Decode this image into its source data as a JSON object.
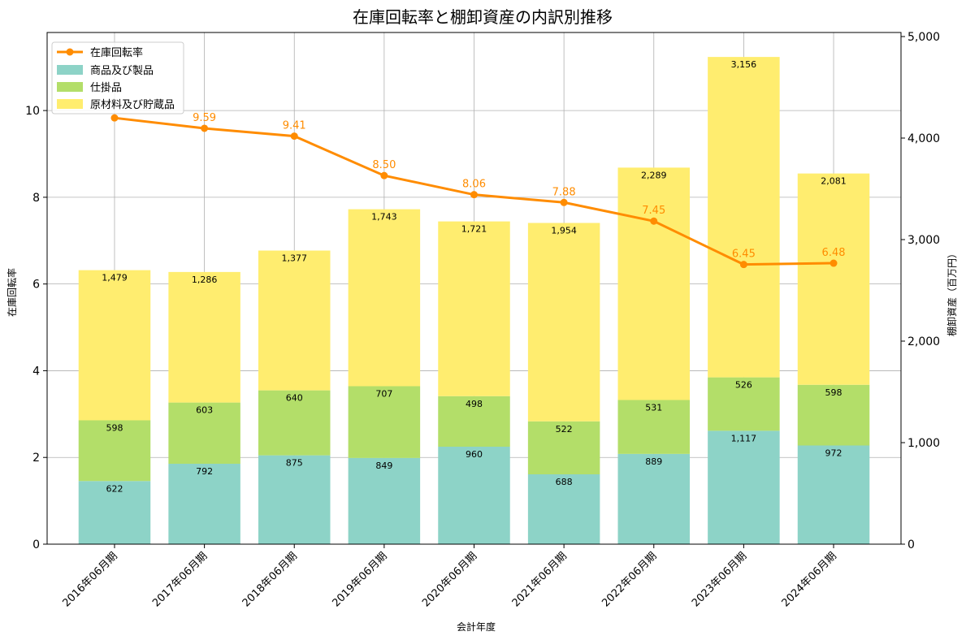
{
  "chart_data": {
    "type": "bar",
    "title": "在庫回転率と棚卸資産の内訳別推移",
    "xlabel": "会計年度",
    "ylabel_left": "在庫回転率",
    "ylabel_right": "棚卸資産（百万円）",
    "categories": [
      "2016年06月期",
      "2017年06月期",
      "2018年06月期",
      "2019年06月期",
      "2020年06月期",
      "2021年06月期",
      "2022年06月期",
      "2023年06月期",
      "2024年06月期"
    ],
    "ylim_left": [
      0,
      11.8
    ],
    "ylim_right": [
      0,
      5040
    ],
    "yticks_left": [
      0,
      2,
      4,
      6,
      8,
      10
    ],
    "yticks_right": [
      0,
      1000,
      2000,
      3000,
      4000,
      5000
    ],
    "ytick_labels_right": [
      "0",
      "1,000",
      "2,000",
      "3,000",
      "4,000",
      "5,000"
    ],
    "grid": true,
    "legend_position": "top-left",
    "stacked_series": [
      {
        "name": "商品及び製品",
        "color": "#8dd3c7",
        "values": [
          622,
          792,
          875,
          849,
          960,
          688,
          889,
          1117,
          972
        ],
        "labels": [
          "622",
          "792",
          "875",
          "849",
          "960",
          "688",
          "889",
          "1,117",
          "972"
        ]
      },
      {
        "name": "仕掛品",
        "color": "#b3de69",
        "values": [
          598,
          603,
          640,
          707,
          498,
          522,
          531,
          526,
          598
        ],
        "labels": [
          "598",
          "603",
          "640",
          "707",
          "498",
          "522",
          "531",
          "526",
          "598"
        ]
      },
      {
        "name": "原材料及び貯蔵品",
        "color": "#ffed6f",
        "values": [
          1479,
          1286,
          1377,
          1743,
          1721,
          1954,
          2289,
          3156,
          2081
        ],
        "labels": [
          "1,479",
          "1,286",
          "1,377",
          "1,743",
          "1,721",
          "1,954",
          "2,289",
          "3,156",
          "2,081"
        ]
      }
    ],
    "line_series": {
      "name": "在庫回転率",
      "color": "#ff8c00",
      "values": [
        9.83,
        9.59,
        9.41,
        8.5,
        8.06,
        7.88,
        7.45,
        6.45,
        6.48
      ],
      "labels": [
        "",
        "9.59",
        "9.41",
        "8.50",
        "8.06",
        "7.88",
        "7.45",
        "6.45",
        "6.48"
      ]
    }
  }
}
